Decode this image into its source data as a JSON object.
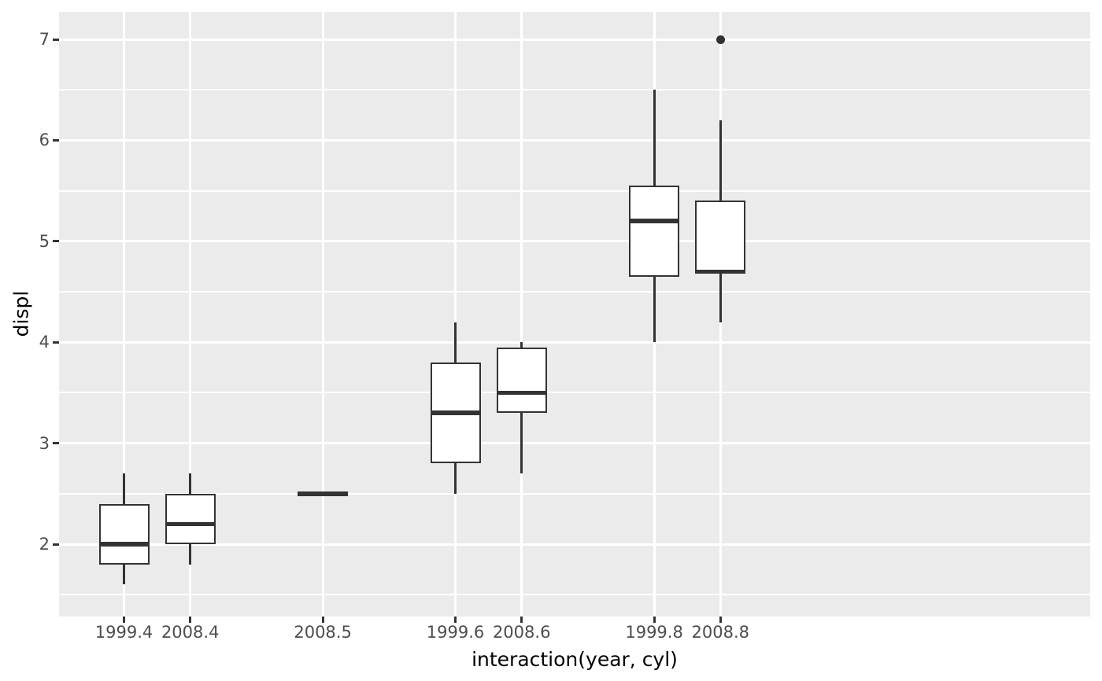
{
  "chart_data": {
    "type": "boxplot",
    "title": "",
    "xlabel": "interaction(year, cyl)",
    "ylabel": "displ",
    "ylim": [
      1.284,
      7.273
    ],
    "y_major_ticks": [
      2,
      3,
      4,
      5,
      6,
      7
    ],
    "y_minor_ticks": [
      1.5,
      2.5,
      3.5,
      4.5,
      5.5,
      6.5
    ],
    "grid": "on",
    "legend": "none",
    "x_tick_labels": [
      "1999.4",
      "2008.4",
      "2008.5",
      "1999.6",
      "2008.6",
      "1999.8",
      "2008.8"
    ],
    "groups": [
      {
        "label": "1999.4",
        "slot": 0,
        "min": 1.6,
        "q1": 1.8,
        "median": 2.0,
        "q3": 2.4,
        "max": 2.7,
        "outliers": []
      },
      {
        "label": "2008.4",
        "slot": 1,
        "min": 1.8,
        "q1": 2.0,
        "median": 2.2,
        "q3": 2.5,
        "max": 2.7,
        "outliers": []
      },
      {
        "label": "2008.5",
        "slot": 3,
        "min": 2.5,
        "q1": 2.5,
        "median": 2.5,
        "q3": 2.5,
        "max": 2.5,
        "outliers": []
      },
      {
        "label": "1999.6",
        "slot": 5,
        "min": 2.5,
        "q1": 2.8,
        "median": 3.3,
        "q3": 3.8,
        "max": 4.2,
        "outliers": []
      },
      {
        "label": "2008.6",
        "slot": 6,
        "min": 2.7,
        "q1": 3.3,
        "median": 3.5,
        "q3": 3.95,
        "max": 4.0,
        "outliers": []
      },
      {
        "label": "1999.8",
        "slot": 8,
        "min": 4.0,
        "q1": 4.65,
        "median": 5.2,
        "q3": 5.55,
        "max": 6.5,
        "outliers": []
      },
      {
        "label": "2008.8",
        "slot": 9,
        "min": 4.2,
        "q1": 4.7,
        "median": 4.7,
        "q3": 5.4,
        "max": 6.2,
        "outliers": [
          7.0
        ]
      }
    ],
    "colors": {
      "panel_background": "#EBEBEB",
      "gridline": "#FFFFFF",
      "box_border": "#333333",
      "box_fill": "#FFFFFF",
      "median": "#333333",
      "outlier": "#303030",
      "tick_mark": "#333333",
      "tick_label": "#4D4D4D",
      "axis_title": "#000000"
    }
  }
}
